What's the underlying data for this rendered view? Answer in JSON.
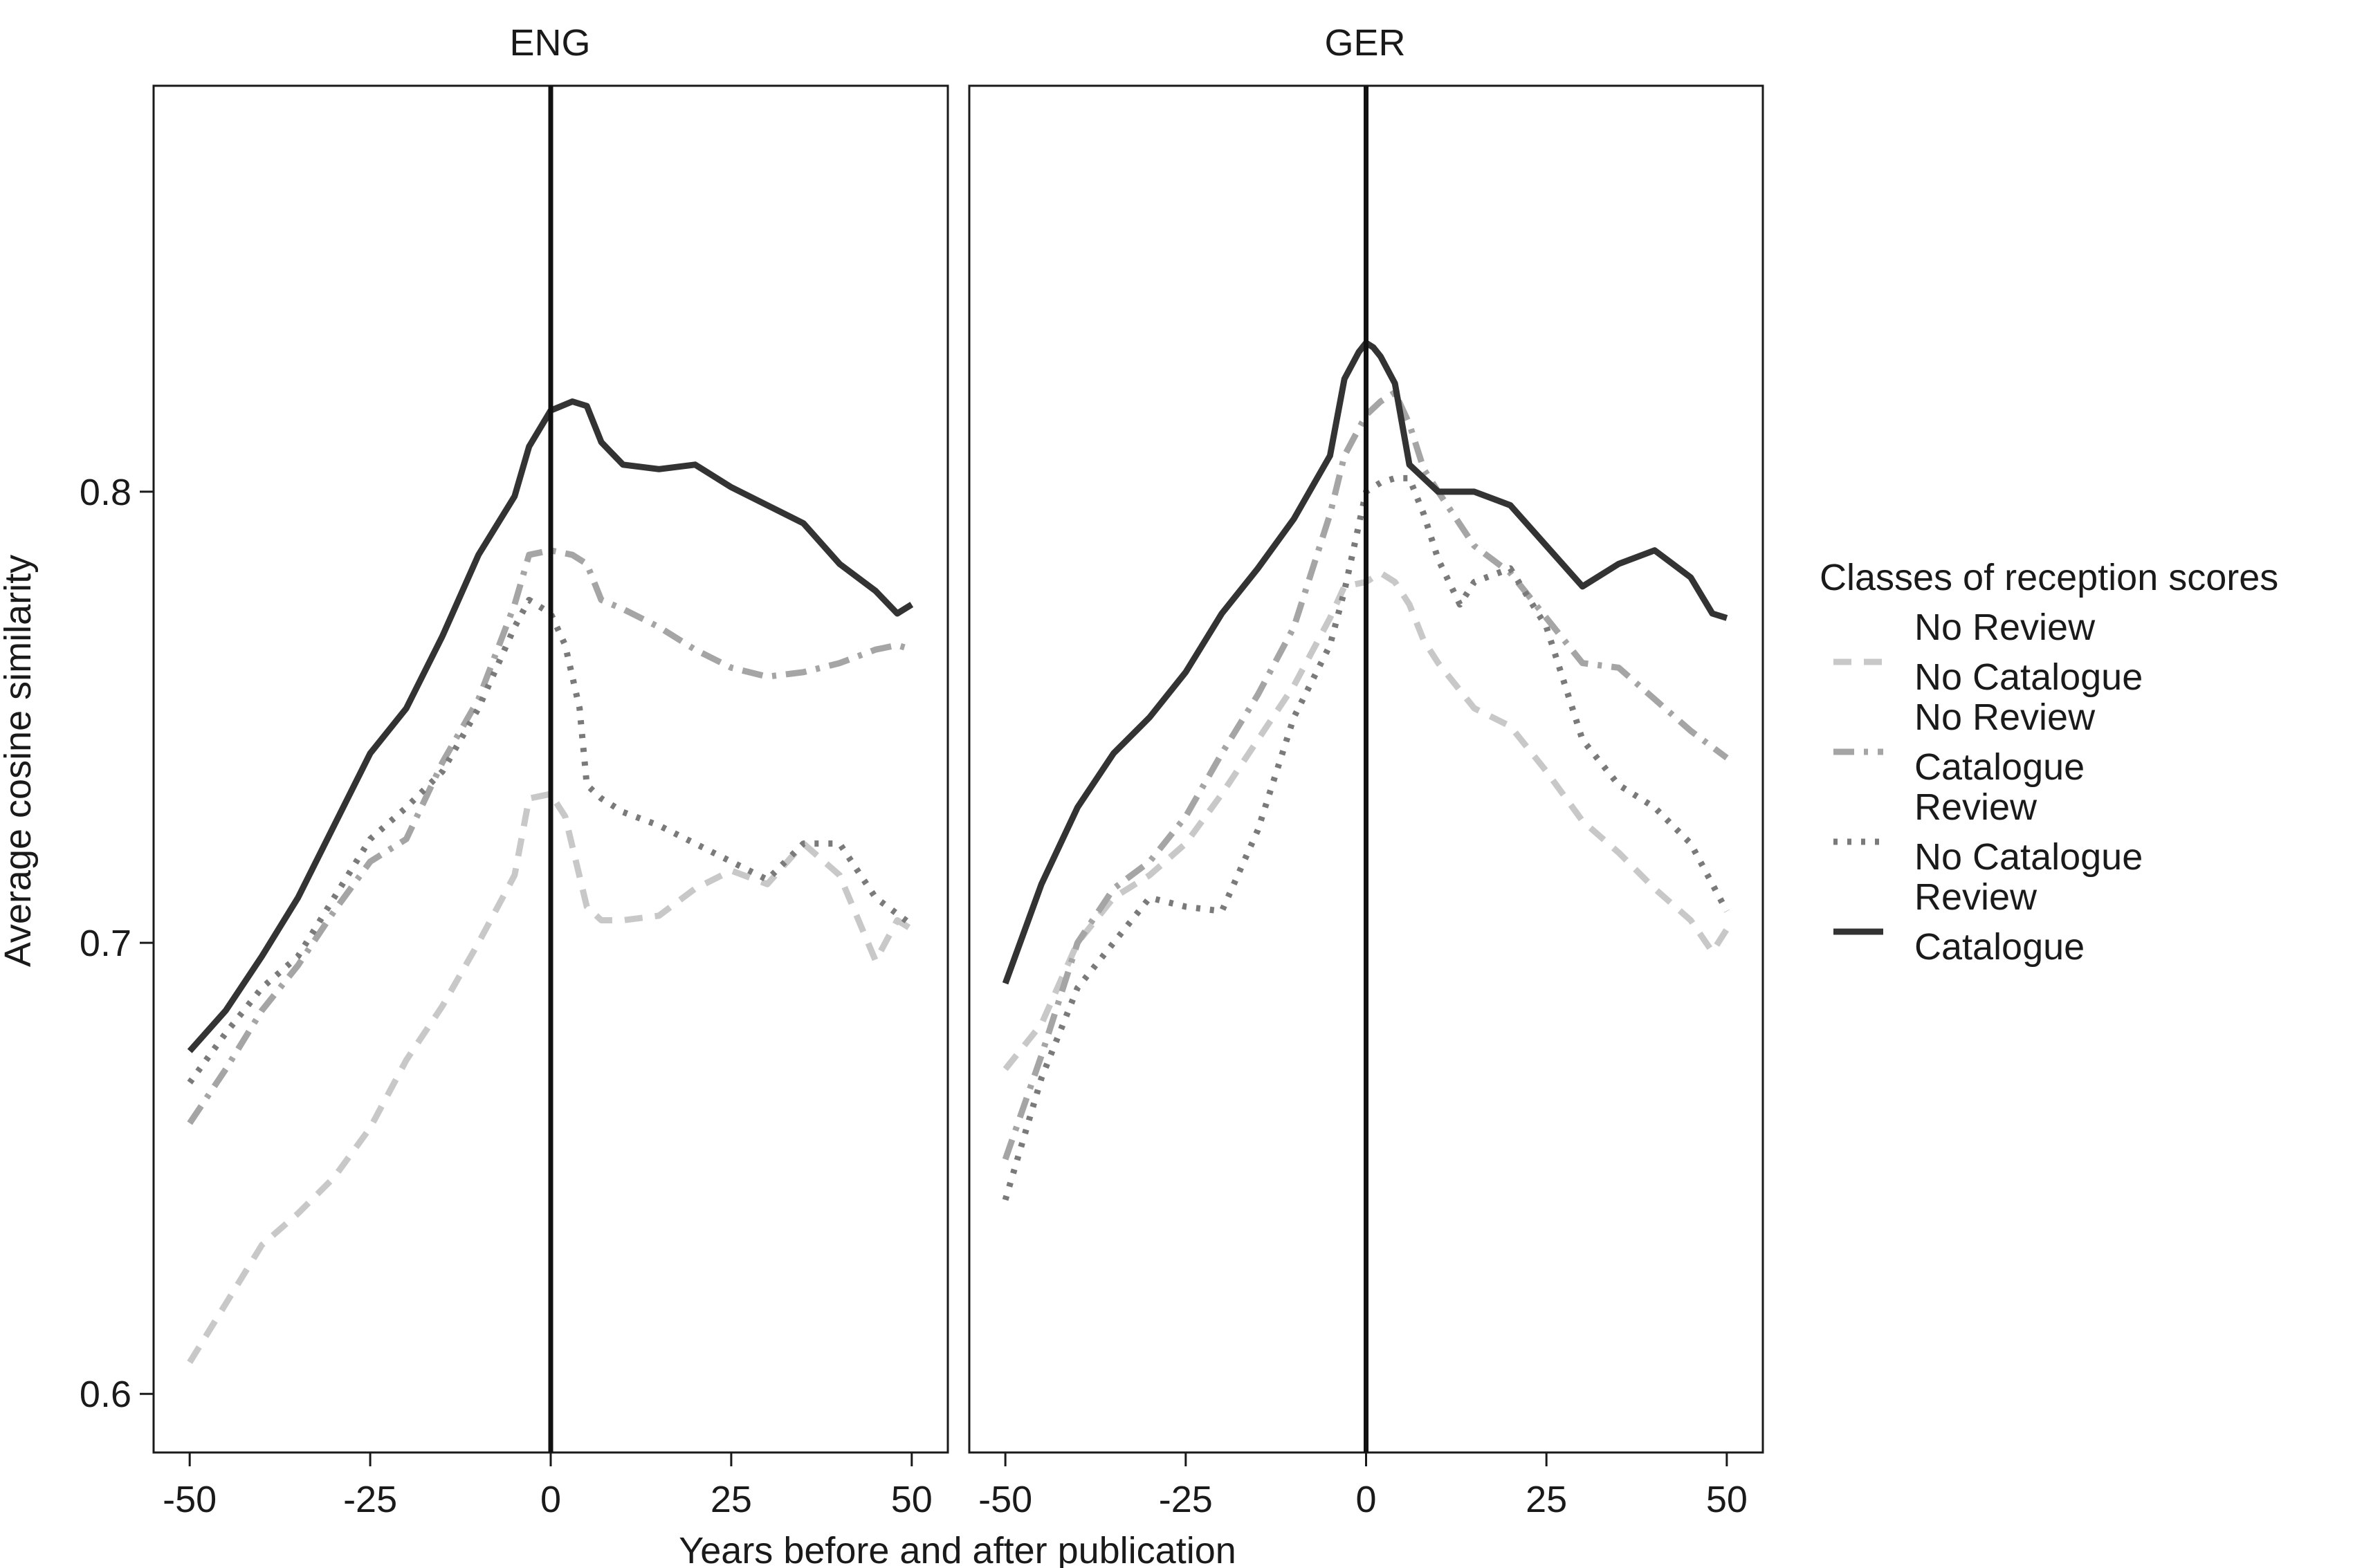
{
  "chart_data": {
    "type": "line",
    "title": "",
    "xlabel": "Years before and after publication",
    "ylabel": "Average cosine similarity",
    "xlim": [
      -55,
      55
    ],
    "ylim": [
      0.587,
      0.89
    ],
    "xticks": [
      -50,
      -25,
      0,
      25,
      50
    ],
    "xtick_labels": [
      "-50",
      "-25",
      "0",
      "25",
      "50"
    ],
    "yticks": [
      0.6,
      0.7,
      0.8
    ],
    "ytick_labels": [
      "0.6",
      "0.7",
      "0.8"
    ],
    "vline_x": 0,
    "grid": false,
    "legend": {
      "title": "Classes of reception scores",
      "position": "right",
      "entries": [
        {
          "line1": "No Review",
          "line2": "No Catalogue",
          "style": "dashed",
          "color": "#c8c8c8"
        },
        {
          "line1": "No Review",
          "line2": "Catalogue",
          "style": "dashdot",
          "color": "#a5a5a5"
        },
        {
          "line1": "Review",
          "line2": "No Catalogue",
          "style": "dotted",
          "color": "#7a7a7a"
        },
        {
          "line1": "Review",
          "line2": "Catalogue",
          "style": "solid",
          "color": "#333333"
        }
      ]
    },
    "panels": [
      {
        "label": "ENG",
        "series": [
          {
            "name": "No Review / No Catalogue",
            "x": [
              -50,
              -45,
              -40,
              -35,
              -30,
              -25,
              -20,
              -15,
              -10,
              -5,
              -3,
              0,
              2,
              5,
              7,
              10,
              15,
              20,
              25,
              30,
              35,
              40,
              45,
              48,
              50
            ],
            "y": [
              0.607,
              0.62,
              0.633,
              0.64,
              0.648,
              0.659,
              0.674,
              0.686,
              0.7,
              0.715,
              0.732,
              0.733,
              0.728,
              0.708,
              0.705,
              0.705,
              0.706,
              0.712,
              0.716,
              0.713,
              0.722,
              0.715,
              0.696,
              0.705,
              0.703
            ]
          },
          {
            "name": "No Review / Catalogue",
            "x": [
              -50,
              -45,
              -40,
              -35,
              -30,
              -25,
              -20,
              -15,
              -10,
              -5,
              -3,
              0,
              3,
              5,
              7,
              10,
              15,
              20,
              25,
              30,
              35,
              40,
              45,
              48,
              50
            ],
            "y": [
              0.66,
              0.672,
              0.685,
              0.695,
              0.707,
              0.718,
              0.723,
              0.74,
              0.754,
              0.775,
              0.786,
              0.787,
              0.786,
              0.784,
              0.776,
              0.774,
              0.77,
              0.765,
              0.761,
              0.759,
              0.76,
              0.762,
              0.765,
              0.766,
              0.765
            ]
          },
          {
            "name": "Review / No Catalogue",
            "x": [
              -50,
              -45,
              -40,
              -35,
              -30,
              -25,
              -20,
              -15,
              -10,
              -5,
              -3,
              0,
              2,
              4,
              5,
              7,
              10,
              15,
              20,
              25,
              30,
              35,
              40,
              45,
              50
            ],
            "y": [
              0.669,
              0.68,
              0.69,
              0.697,
              0.71,
              0.723,
              0.73,
              0.738,
              0.752,
              0.77,
              0.776,
              0.773,
              0.766,
              0.752,
              0.735,
              0.732,
              0.729,
              0.726,
              0.722,
              0.718,
              0.714,
              0.722,
              0.722,
              0.71,
              0.704
            ]
          },
          {
            "name": "Review / Catalogue",
            "x": [
              -50,
              -45,
              -40,
              -35,
              -30,
              -25,
              -20,
              -15,
              -10,
              -5,
              -3,
              0,
              3,
              5,
              7,
              10,
              15,
              20,
              25,
              30,
              35,
              40,
              45,
              48,
              50
            ],
            "y": [
              0.676,
              0.685,
              0.697,
              0.71,
              0.726,
              0.742,
              0.752,
              0.768,
              0.786,
              0.799,
              0.81,
              0.818,
              0.82,
              0.819,
              0.811,
              0.806,
              0.805,
              0.806,
              0.801,
              0.797,
              0.793,
              0.784,
              0.778,
              0.773,
              0.775
            ]
          }
        ]
      },
      {
        "label": "GER",
        "series": [
          {
            "name": "No Review / No Catalogue",
            "x": [
              -50,
              -45,
              -40,
              -35,
              -30,
              -25,
              -20,
              -15,
              -10,
              -5,
              -3,
              0,
              2,
              4,
              6,
              8,
              10,
              15,
              20,
              25,
              30,
              35,
              40,
              45,
              48,
              50
            ],
            "y": [
              0.672,
              0.682,
              0.7,
              0.71,
              0.715,
              0.722,
              0.733,
              0.745,
              0.757,
              0.772,
              0.779,
              0.78,
              0.782,
              0.78,
              0.775,
              0.767,
              0.762,
              0.752,
              0.748,
              0.738,
              0.727,
              0.72,
              0.712,
              0.705,
              0.698,
              0.703
            ]
          },
          {
            "name": "No Review / Catalogue",
            "x": [
              -50,
              -45,
              -40,
              -35,
              -30,
              -25,
              -20,
              -15,
              -10,
              -5,
              -3,
              0,
              2,
              4,
              6,
              8,
              10,
              15,
              20,
              25,
              30,
              35,
              40,
              45,
              50
            ],
            "y": [
              0.652,
              0.675,
              0.7,
              0.712,
              0.718,
              0.728,
              0.742,
              0.755,
              0.77,
              0.795,
              0.808,
              0.817,
              0.82,
              0.822,
              0.815,
              0.805,
              0.8,
              0.788,
              0.782,
              0.772,
              0.762,
              0.761,
              0.754,
              0.747,
              0.741
            ]
          },
          {
            "name": "Review / No Catalogue",
            "x": [
              -50,
              -45,
              -40,
              -35,
              -30,
              -25,
              -20,
              -15,
              -10,
              -5,
              -3,
              0,
              2,
              4,
              6,
              8,
              10,
              13,
              15,
              20,
              25,
              30,
              35,
              40,
              45,
              50
            ],
            "y": [
              0.643,
              0.67,
              0.69,
              0.7,
              0.71,
              0.708,
              0.707,
              0.725,
              0.75,
              0.766,
              0.778,
              0.8,
              0.802,
              0.803,
              0.803,
              0.795,
              0.785,
              0.775,
              0.78,
              0.783,
              0.77,
              0.745,
              0.735,
              0.73,
              0.722,
              0.707
            ]
          },
          {
            "name": "Review / Catalogue",
            "x": [
              -50,
              -45,
              -40,
              -35,
              -30,
              -25,
              -20,
              -15,
              -10,
              -5,
              -3,
              -1,
              0,
              1,
              2,
              4,
              6,
              8,
              10,
              15,
              20,
              25,
              30,
              35,
              40,
              45,
              48,
              50
            ],
            "y": [
              0.691,
              0.713,
              0.73,
              0.742,
              0.75,
              0.76,
              0.773,
              0.783,
              0.794,
              0.808,
              0.825,
              0.831,
              0.833,
              0.832,
              0.83,
              0.824,
              0.806,
              0.803,
              0.8,
              0.8,
              0.797,
              0.788,
              0.779,
              0.784,
              0.787,
              0.781,
              0.773,
              0.772
            ]
          }
        ]
      }
    ]
  },
  "style": {
    "series_colors": [
      "#c8c8c8",
      "#a5a5a5",
      "#7a7a7a",
      "#333333"
    ],
    "series_dashes": [
      "dashed",
      "dashdot",
      "dotted",
      "solid"
    ],
    "vline_color": "#111111",
    "frame_color": "#1a1a1a"
  }
}
